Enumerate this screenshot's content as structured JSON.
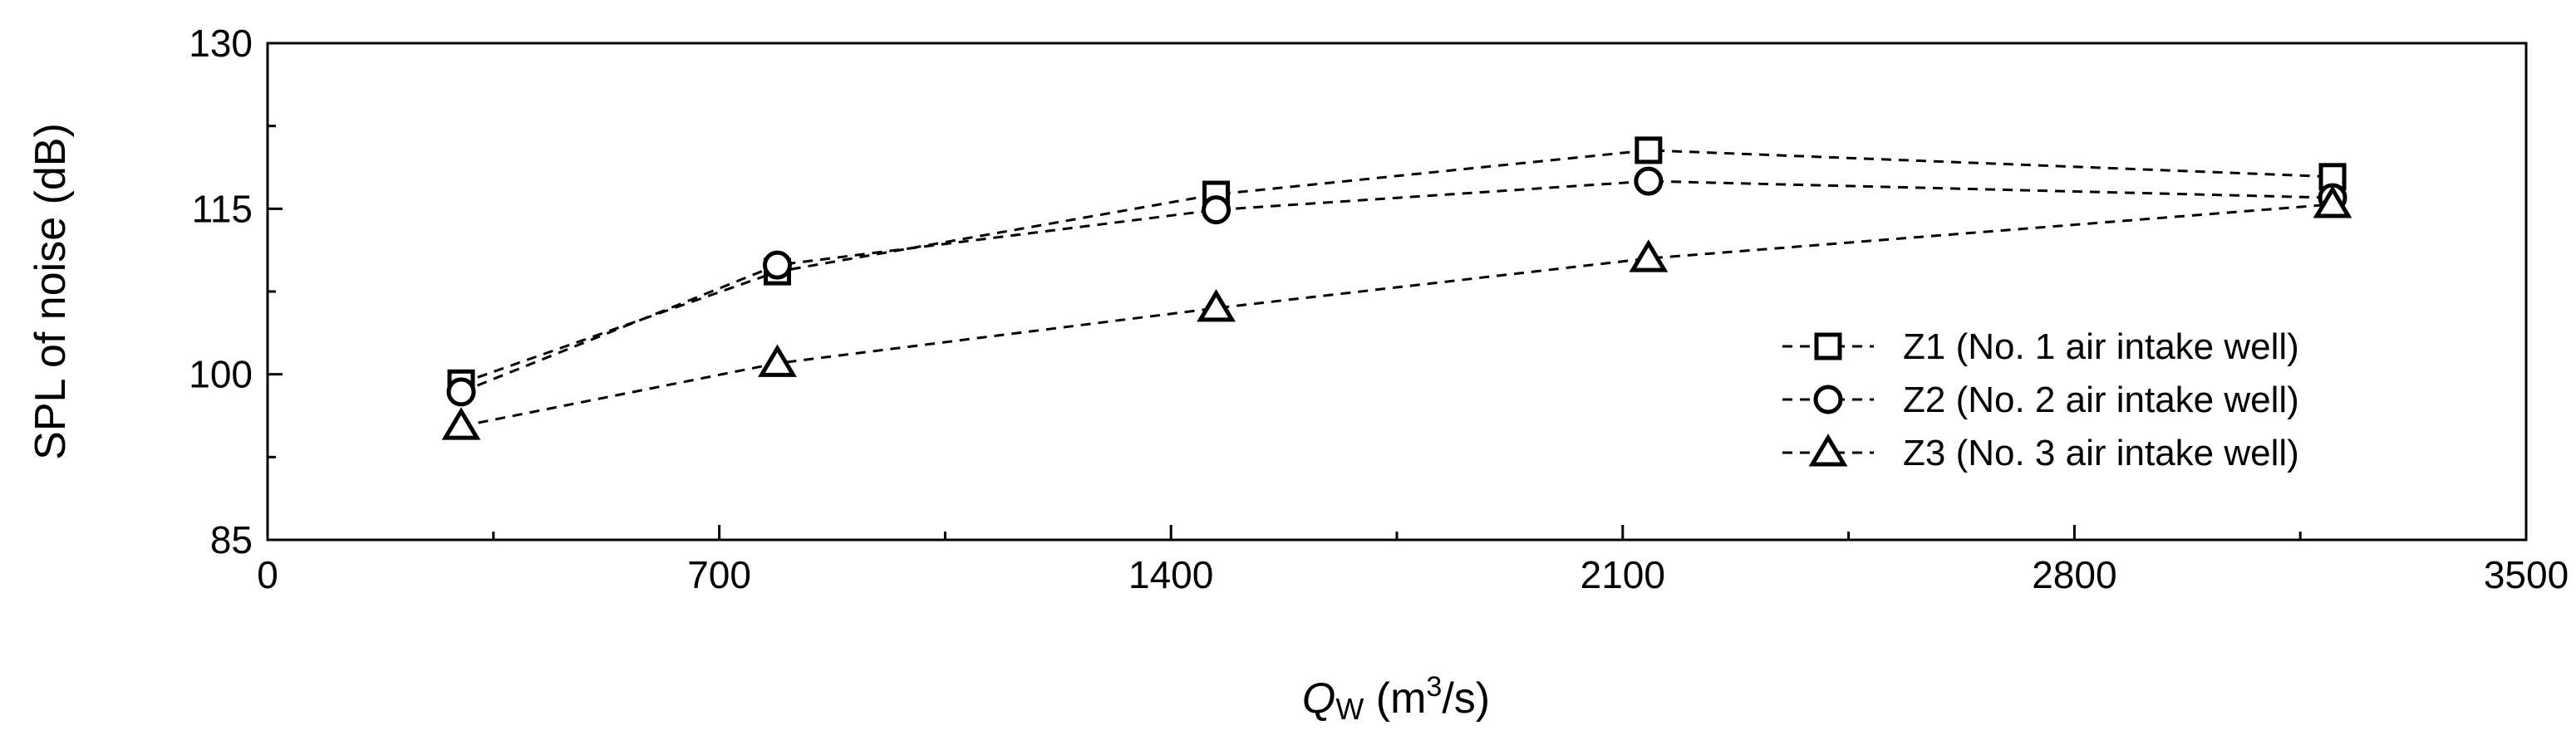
{
  "chart_data": {
    "type": "line",
    "xlabel": {
      "italic": "Q",
      "sub": "W",
      "rest": " (m",
      "sup": "3",
      "tail": "/s)"
    },
    "ylabel": "SPL of noise (dB)",
    "xlim": [
      0,
      3500
    ],
    "ylim": [
      85,
      130
    ],
    "xticks": [
      0,
      700,
      1400,
      2100,
      2800,
      3500
    ],
    "yticks": [
      85,
      100,
      115,
      130
    ],
    "legend_position": "right",
    "series": [
      {
        "name": "Z1 (No. 1 air intake well)",
        "marker": "square",
        "x": [
          300,
          790,
          1470,
          2140,
          3200
        ],
        "y": [
          99.2,
          109.3,
          116.3,
          120.3,
          117.9
        ]
      },
      {
        "name": "Z2 (No. 2 air intake well)",
        "marker": "circle",
        "x": [
          300,
          790,
          1470,
          2140,
          3200
        ],
        "y": [
          98.4,
          109.9,
          114.9,
          117.5,
          116.0
        ]
      },
      {
        "name": "Z3 (No. 3 air intake well)",
        "marker": "triangle",
        "x": [
          300,
          790,
          1470,
          2140,
          3200
        ],
        "y": [
          95.3,
          101.0,
          106.0,
          110.5,
          115.4
        ]
      }
    ]
  }
}
